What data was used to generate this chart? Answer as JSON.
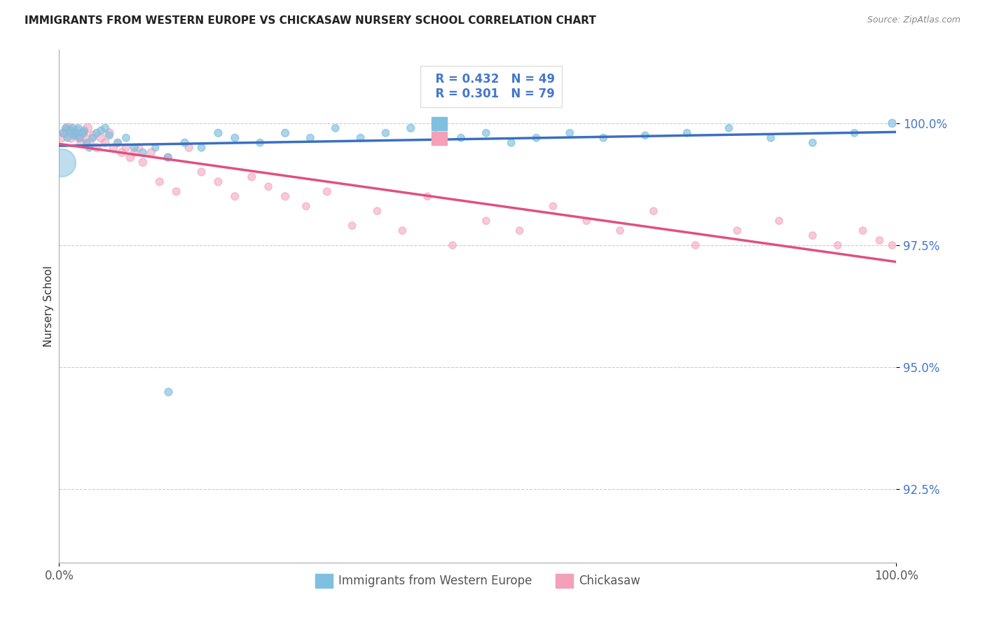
{
  "title": "IMMIGRANTS FROM WESTERN EUROPE VS CHICKASAW NURSERY SCHOOL CORRELATION CHART",
  "source": "Source: ZipAtlas.com",
  "ylabel": "Nursery School",
  "xlim": [
    0.0,
    100.0
  ],
  "ylim": [
    91.0,
    101.5
  ],
  "yticks": [
    92.5,
    95.0,
    97.5,
    100.0
  ],
  "background_color": "#ffffff",
  "grid_color": "#cccccc",
  "blue_color": "#7fbfdf",
  "pink_color": "#f4a0b8",
  "blue_line_color": "#3a6fc4",
  "pink_line_color": "#e05080",
  "R_blue": 0.432,
  "N_blue": 49,
  "R_pink": 0.301,
  "N_pink": 79,
  "label_color": "#4477cc",
  "blue_points_x": [
    0.5,
    0.8,
    1.0,
    1.3,
    1.6,
    1.8,
    2.0,
    2.3,
    2.5,
    2.8,
    3.0,
    3.3,
    3.6,
    4.0,
    4.5,
    5.0,
    5.5,
    6.0,
    7.0,
    8.0,
    9.0,
    10.0,
    11.5,
    13.0,
    15.0,
    17.0,
    19.0,
    21.0,
    24.0,
    27.0,
    30.0,
    33.0,
    36.0,
    39.0,
    42.0,
    45.0,
    48.0,
    51.0,
    54.0,
    57.0,
    61.0,
    65.0,
    70.0,
    75.0,
    80.0,
    85.0,
    90.0,
    95.0,
    99.5
  ],
  "blue_points_y": [
    99.8,
    99.9,
    99.7,
    99.85,
    99.9,
    99.75,
    99.8,
    99.9,
    99.7,
    99.8,
    99.85,
    99.6,
    99.5,
    99.7,
    99.8,
    99.85,
    99.9,
    99.75,
    99.6,
    99.7,
    99.5,
    99.4,
    99.5,
    99.3,
    99.6,
    99.5,
    99.8,
    99.7,
    99.6,
    99.8,
    99.7,
    99.9,
    99.7,
    99.8,
    99.9,
    99.75,
    99.7,
    99.8,
    99.6,
    99.7,
    99.8,
    99.7,
    99.75,
    99.8,
    99.9,
    99.7,
    99.6,
    99.8,
    100.0
  ],
  "blue_points_size": [
    60,
    60,
    55,
    60,
    60,
    55,
    60,
    55,
    50,
    60,
    55,
    50,
    55,
    55,
    60,
    55,
    60,
    55,
    50,
    55,
    60,
    55,
    50,
    55,
    60,
    55,
    60,
    60,
    55,
    60,
    55,
    55,
    55,
    55,
    60,
    55,
    55,
    55,
    55,
    55,
    55,
    55,
    55,
    55,
    55,
    55,
    55,
    55,
    65
  ],
  "pink_points_x": [
    0.3,
    0.6,
    0.9,
    1.1,
    1.4,
    1.6,
    1.9,
    2.1,
    2.4,
    2.6,
    2.9,
    3.1,
    3.4,
    3.7,
    4.1,
    4.5,
    5.0,
    5.5,
    6.0,
    6.5,
    7.0,
    7.5,
    8.0,
    8.5,
    9.0,
    9.5,
    10.0,
    11.0,
    12.0,
    13.0,
    14.0,
    15.5,
    17.0,
    19.0,
    21.0,
    23.0,
    25.0,
    27.0,
    29.5,
    32.0,
    35.0,
    38.0,
    41.0,
    44.0,
    47.0,
    51.0,
    55.0,
    59.0,
    63.0,
    67.0,
    71.0,
    76.0,
    81.0,
    86.0,
    90.0,
    93.0,
    96.0,
    98.0,
    99.5
  ],
  "pink_points_y": [
    99.7,
    99.8,
    99.85,
    99.9,
    99.7,
    99.8,
    99.75,
    99.85,
    99.7,
    99.6,
    99.8,
    99.7,
    99.9,
    99.6,
    99.75,
    99.5,
    99.7,
    99.6,
    99.8,
    99.5,
    99.6,
    99.4,
    99.5,
    99.3,
    99.4,
    99.5,
    99.2,
    99.4,
    98.8,
    99.3,
    98.6,
    99.5,
    99.0,
    98.8,
    98.5,
    98.9,
    98.7,
    98.5,
    98.3,
    98.6,
    97.9,
    98.2,
    97.8,
    98.5,
    97.5,
    98.0,
    97.8,
    98.3,
    98.0,
    97.8,
    98.2,
    97.5,
    97.8,
    98.0,
    97.7,
    97.5,
    97.8,
    97.6,
    97.5
  ],
  "pink_points_size": [
    70,
    80,
    90,
    100,
    80,
    90,
    80,
    80,
    75,
    70,
    80,
    75,
    85,
    70,
    75,
    70,
    75,
    70,
    75,
    70,
    65,
    70,
    65,
    70,
    65,
    65,
    65,
    65,
    60,
    65,
    60,
    65,
    60,
    60,
    60,
    60,
    55,
    60,
    55,
    60,
    55,
    55,
    55,
    55,
    55,
    55,
    55,
    55,
    55,
    55,
    55,
    55,
    55,
    55,
    55,
    55,
    55,
    55,
    55
  ],
  "big_blue_x": 0.3,
  "big_blue_y": 99.2,
  "big_blue_size": 800,
  "outlier_blue_x": 13.0,
  "outlier_blue_y": 94.5,
  "outlier_blue_size": 60
}
